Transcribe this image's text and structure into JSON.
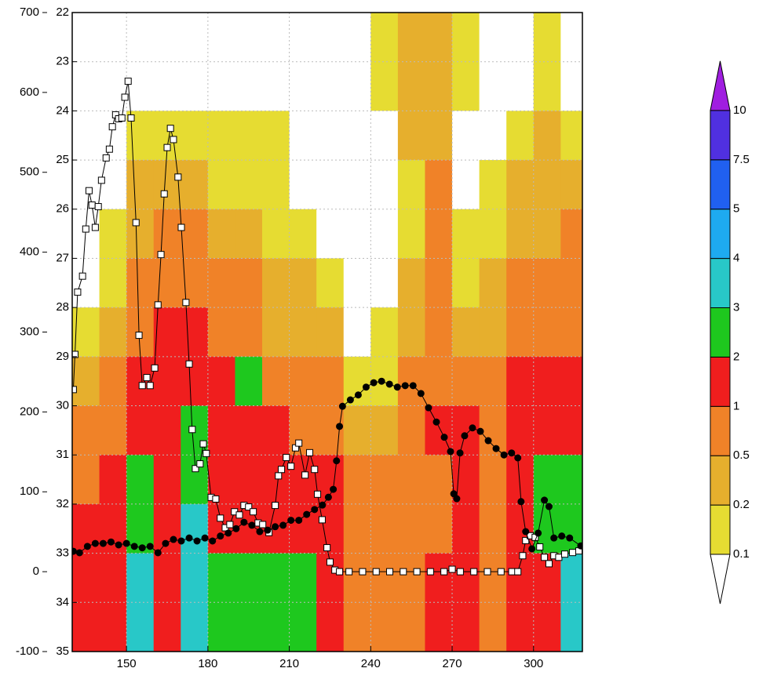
{
  "chart_data": {
    "type": "contour",
    "xlim": [
      130,
      318
    ],
    "xticks": [
      150,
      180,
      210,
      240,
      270,
      300
    ],
    "ylim": [
      -100,
      700
    ],
    "yticks": [
      -100,
      0,
      100,
      200,
      300,
      400,
      500,
      600,
      700
    ],
    "y2lim": [
      35,
      22
    ],
    "y2ticks": [
      22,
      23,
      24,
      25,
      26,
      27,
      28,
      29,
      30,
      31,
      32,
      33,
      34,
      35
    ],
    "grid": true,
    "levels": [
      0.1,
      0.2,
      0.5,
      1,
      2,
      3,
      4,
      5,
      7.5,
      10
    ],
    "colors": [
      "#ffffff",
      "#e6dc32",
      "#e6af2d",
      "#f08228",
      "#f01e1e",
      "#1ec81e",
      "#28c8c8",
      "#1eaaf0",
      "#2060f0",
      "#5030e0",
      "#a01ee0"
    ],
    "field": {
      "x": [
        135,
        145,
        155,
        165,
        175,
        185,
        195,
        205,
        215,
        225,
        235,
        245,
        255,
        265,
        275,
        285,
        295,
        305,
        315
      ],
      "y": [
        22.5,
        23.5,
        24.5,
        25.5,
        26.5,
        27.5,
        28.5,
        29.5,
        30.5,
        31.5,
        32.5,
        33.5,
        34.5
      ],
      "z": [
        [
          0.05,
          0.05,
          0.05,
          0.05,
          0.05,
          0.05,
          0.15,
          0.3,
          0.7,
          0.7,
          1.5,
          1.5,
          1.5
        ],
        [
          0.05,
          0.05,
          0.05,
          0.05,
          0.15,
          0.15,
          0.3,
          0.7,
          0.7,
          1.5,
          1.5,
          1.5,
          1.5
        ],
        [
          0.05,
          0.05,
          0.15,
          0.3,
          0.3,
          0.7,
          0.7,
          1.5,
          1.5,
          2.5,
          2.5,
          3.5,
          3.5
        ],
        [
          0.05,
          0.05,
          0.15,
          0.3,
          0.7,
          0.7,
          1.5,
          1.5,
          1.5,
          1.5,
          1.5,
          1.5,
          1.5
        ],
        [
          0.05,
          0.05,
          0.15,
          0.3,
          0.7,
          0.7,
          1.5,
          1.5,
          2.5,
          2.5,
          3.5,
          3.5,
          3.5
        ],
        [
          0.05,
          0.05,
          0.15,
          0.15,
          0.3,
          0.7,
          0.7,
          1.5,
          1.5,
          1.5,
          1.5,
          2.5,
          2.5
        ],
        [
          0.05,
          0.05,
          0.15,
          0.15,
          0.3,
          0.7,
          0.7,
          2.5,
          1.5,
          1.5,
          1.5,
          2.5,
          2.5
        ],
        [
          0.05,
          0.05,
          0.15,
          0.15,
          0.15,
          0.3,
          0.3,
          0.7,
          1.5,
          1.5,
          1.5,
          2.5,
          2.5
        ],
        [
          0.05,
          0.05,
          0.05,
          0.05,
          0.15,
          0.3,
          0.3,
          0.7,
          0.7,
          1.5,
          1.5,
          2.5,
          2.5
        ],
        [
          0.05,
          0.05,
          0.05,
          0.05,
          0.05,
          0.15,
          0.3,
          0.7,
          0.7,
          1.5,
          1.5,
          1.5,
          1.5
        ],
        [
          0.05,
          0.05,
          0.05,
          0.05,
          0.05,
          0.05,
          0.05,
          0.15,
          0.3,
          0.7,
          0.7,
          0.7,
          0.7
        ],
        [
          0.15,
          0.15,
          0.05,
          0.05,
          0.05,
          0.05,
          0.15,
          0.15,
          0.3,
          0.7,
          0.7,
          0.7,
          0.7
        ],
        [
          0.3,
          0.3,
          0.3,
          0.15,
          0.15,
          0.3,
          0.3,
          0.7,
          0.7,
          0.7,
          0.7,
          0.7,
          0.7
        ],
        [
          0.3,
          0.3,
          0.3,
          0.7,
          0.7,
          0.7,
          0.7,
          0.7,
          1.5,
          0.7,
          0.7,
          1.5,
          1.5
        ],
        [
          0.15,
          0.15,
          0.05,
          0.05,
          0.15,
          0.15,
          0.3,
          0.7,
          1.5,
          1.5,
          1.5,
          1.5,
          1.5
        ],
        [
          0.05,
          0.05,
          0.05,
          0.15,
          0.15,
          0.3,
          0.3,
          0.7,
          0.7,
          0.7,
          0.7,
          0.7,
          0.7
        ],
        [
          0.05,
          0.05,
          0.15,
          0.3,
          0.3,
          0.7,
          0.7,
          1.5,
          1.5,
          1.5,
          1.5,
          1.5,
          1.5
        ],
        [
          0.15,
          0.15,
          0.3,
          0.3,
          0.3,
          0.7,
          0.7,
          1.5,
          1.5,
          2.5,
          2.5,
          1.5,
          1.5
        ],
        [
          0.05,
          0.05,
          0.15,
          0.3,
          0.7,
          0.7,
          0.7,
          1.5,
          1.5,
          2.5,
          2.5,
          3.5,
          3.5
        ]
      ]
    },
    "series": [
      {
        "axis": "y",
        "marker": "square",
        "color": "#000000",
        "fill": "#ffffff",
        "x": [
          130.4,
          131,
          132,
          133.8,
          135,
          136.2,
          137.3,
          138.5,
          139.6,
          140.8,
          142.5,
          143.7,
          144.8,
          146,
          147.1,
          148.3,
          149.4,
          150.6,
          151.7,
          153.5,
          154.6,
          155.8,
          157.5,
          158.7,
          160.4,
          161.6,
          162.7,
          163.9,
          165,
          166.2,
          167.3,
          169,
          170.2,
          171.9,
          173.1,
          174.2,
          175.4,
          177.1,
          178.3,
          179.4,
          181.2,
          182.9,
          184.6,
          186.4,
          188.1,
          189.8,
          191.6,
          193.3,
          195,
          196.7,
          198.5,
          200.2,
          202.5,
          204.8,
          206,
          207.1,
          208.9,
          210.6,
          212.3,
          213.5,
          215.8,
          217.5,
          219.3,
          220.4,
          222.1,
          223.9,
          225,
          226.8,
          228.5,
          232,
          237,
          242,
          247,
          252,
          257,
          262,
          267,
          270,
          273,
          278,
          283,
          288,
          292,
          294.2,
          296,
          297.1,
          298.8,
          300.6,
          302.3,
          304,
          305.7,
          307.5,
          309.3,
          311.5,
          314.4,
          316.7
        ],
        "values": [
          228,
          272,
          350,
          370,
          429,
          477,
          459,
          431,
          457,
          490,
          518,
          529,
          557,
          572,
          567,
          568,
          594,
          614,
          568,
          437,
          296,
          233,
          243,
          233,
          255,
          334,
          397,
          473,
          531,
          555,
          541,
          494,
          431,
          337,
          260,
          178,
          129,
          135,
          160,
          148,
          93,
          91,
          67,
          55,
          59,
          75,
          71,
          83,
          81,
          75,
          61,
          59,
          49,
          83,
          120,
          128,
          143,
          132,
          155,
          161,
          121,
          149,
          128,
          97,
          65,
          30,
          12,
          2,
          0,
          0,
          0,
          0,
          0,
          0,
          0,
          0,
          0,
          3,
          0,
          0,
          0,
          0,
          0,
          0,
          20,
          39,
          45,
          43,
          31,
          18,
          10,
          20,
          18,
          22,
          24,
          26
        ]
      },
      {
        "axis": "y2",
        "marker": "circle",
        "color": "#000000",
        "fill": "#000000",
        "x": [
          130.4,
          132.7,
          135.6,
          138.5,
          141.4,
          144.3,
          147.1,
          150,
          152.9,
          155.8,
          158.7,
          161.6,
          164.4,
          167.3,
          170.2,
          173.1,
          176,
          178.9,
          181.7,
          184.6,
          187.5,
          190.4,
          193.3,
          196.2,
          199.1,
          202,
          204.8,
          207.7,
          210.6,
          213.5,
          216.4,
          219.3,
          222.2,
          224.4,
          226.2,
          227.4,
          228.5,
          229.6,
          232.5,
          235.4,
          238.3,
          241.1,
          244,
          246.9,
          249.8,
          252.7,
          255.6,
          258.5,
          261.3,
          264.2,
          267.1,
          269.4,
          270.6,
          271.7,
          272.9,
          274.6,
          277.5,
          280.4,
          283.3,
          286.2,
          289.1,
          291.9,
          294.2,
          295.4,
          297.1,
          299.4,
          301.7,
          304,
          305.7,
          307.5,
          310.4,
          313.3,
          317.4
        ],
        "values": [
          32.96,
          32.99,
          32.86,
          32.8,
          32.8,
          32.77,
          32.83,
          32.8,
          32.86,
          32.89,
          32.86,
          32.99,
          32.8,
          32.72,
          32.75,
          32.69,
          32.75,
          32.69,
          32.75,
          32.65,
          32.59,
          32.5,
          32.37,
          32.43,
          32.56,
          32.53,
          32.46,
          32.43,
          32.33,
          32.33,
          32.21,
          32.11,
          32.02,
          31.86,
          31.7,
          31.12,
          30.42,
          30.01,
          29.88,
          29.78,
          29.62,
          29.53,
          29.5,
          29.56,
          29.62,
          29.59,
          29.59,
          29.75,
          30.04,
          30.33,
          30.64,
          30.93,
          31.79,
          31.89,
          30.96,
          30.61,
          30.45,
          30.52,
          30.71,
          30.87,
          31,
          30.96,
          31.06,
          31.95,
          32.56,
          32.91,
          32.59,
          31.92,
          32.05,
          32.69,
          32.65,
          32.69,
          32.85
        ]
      }
    ]
  }
}
